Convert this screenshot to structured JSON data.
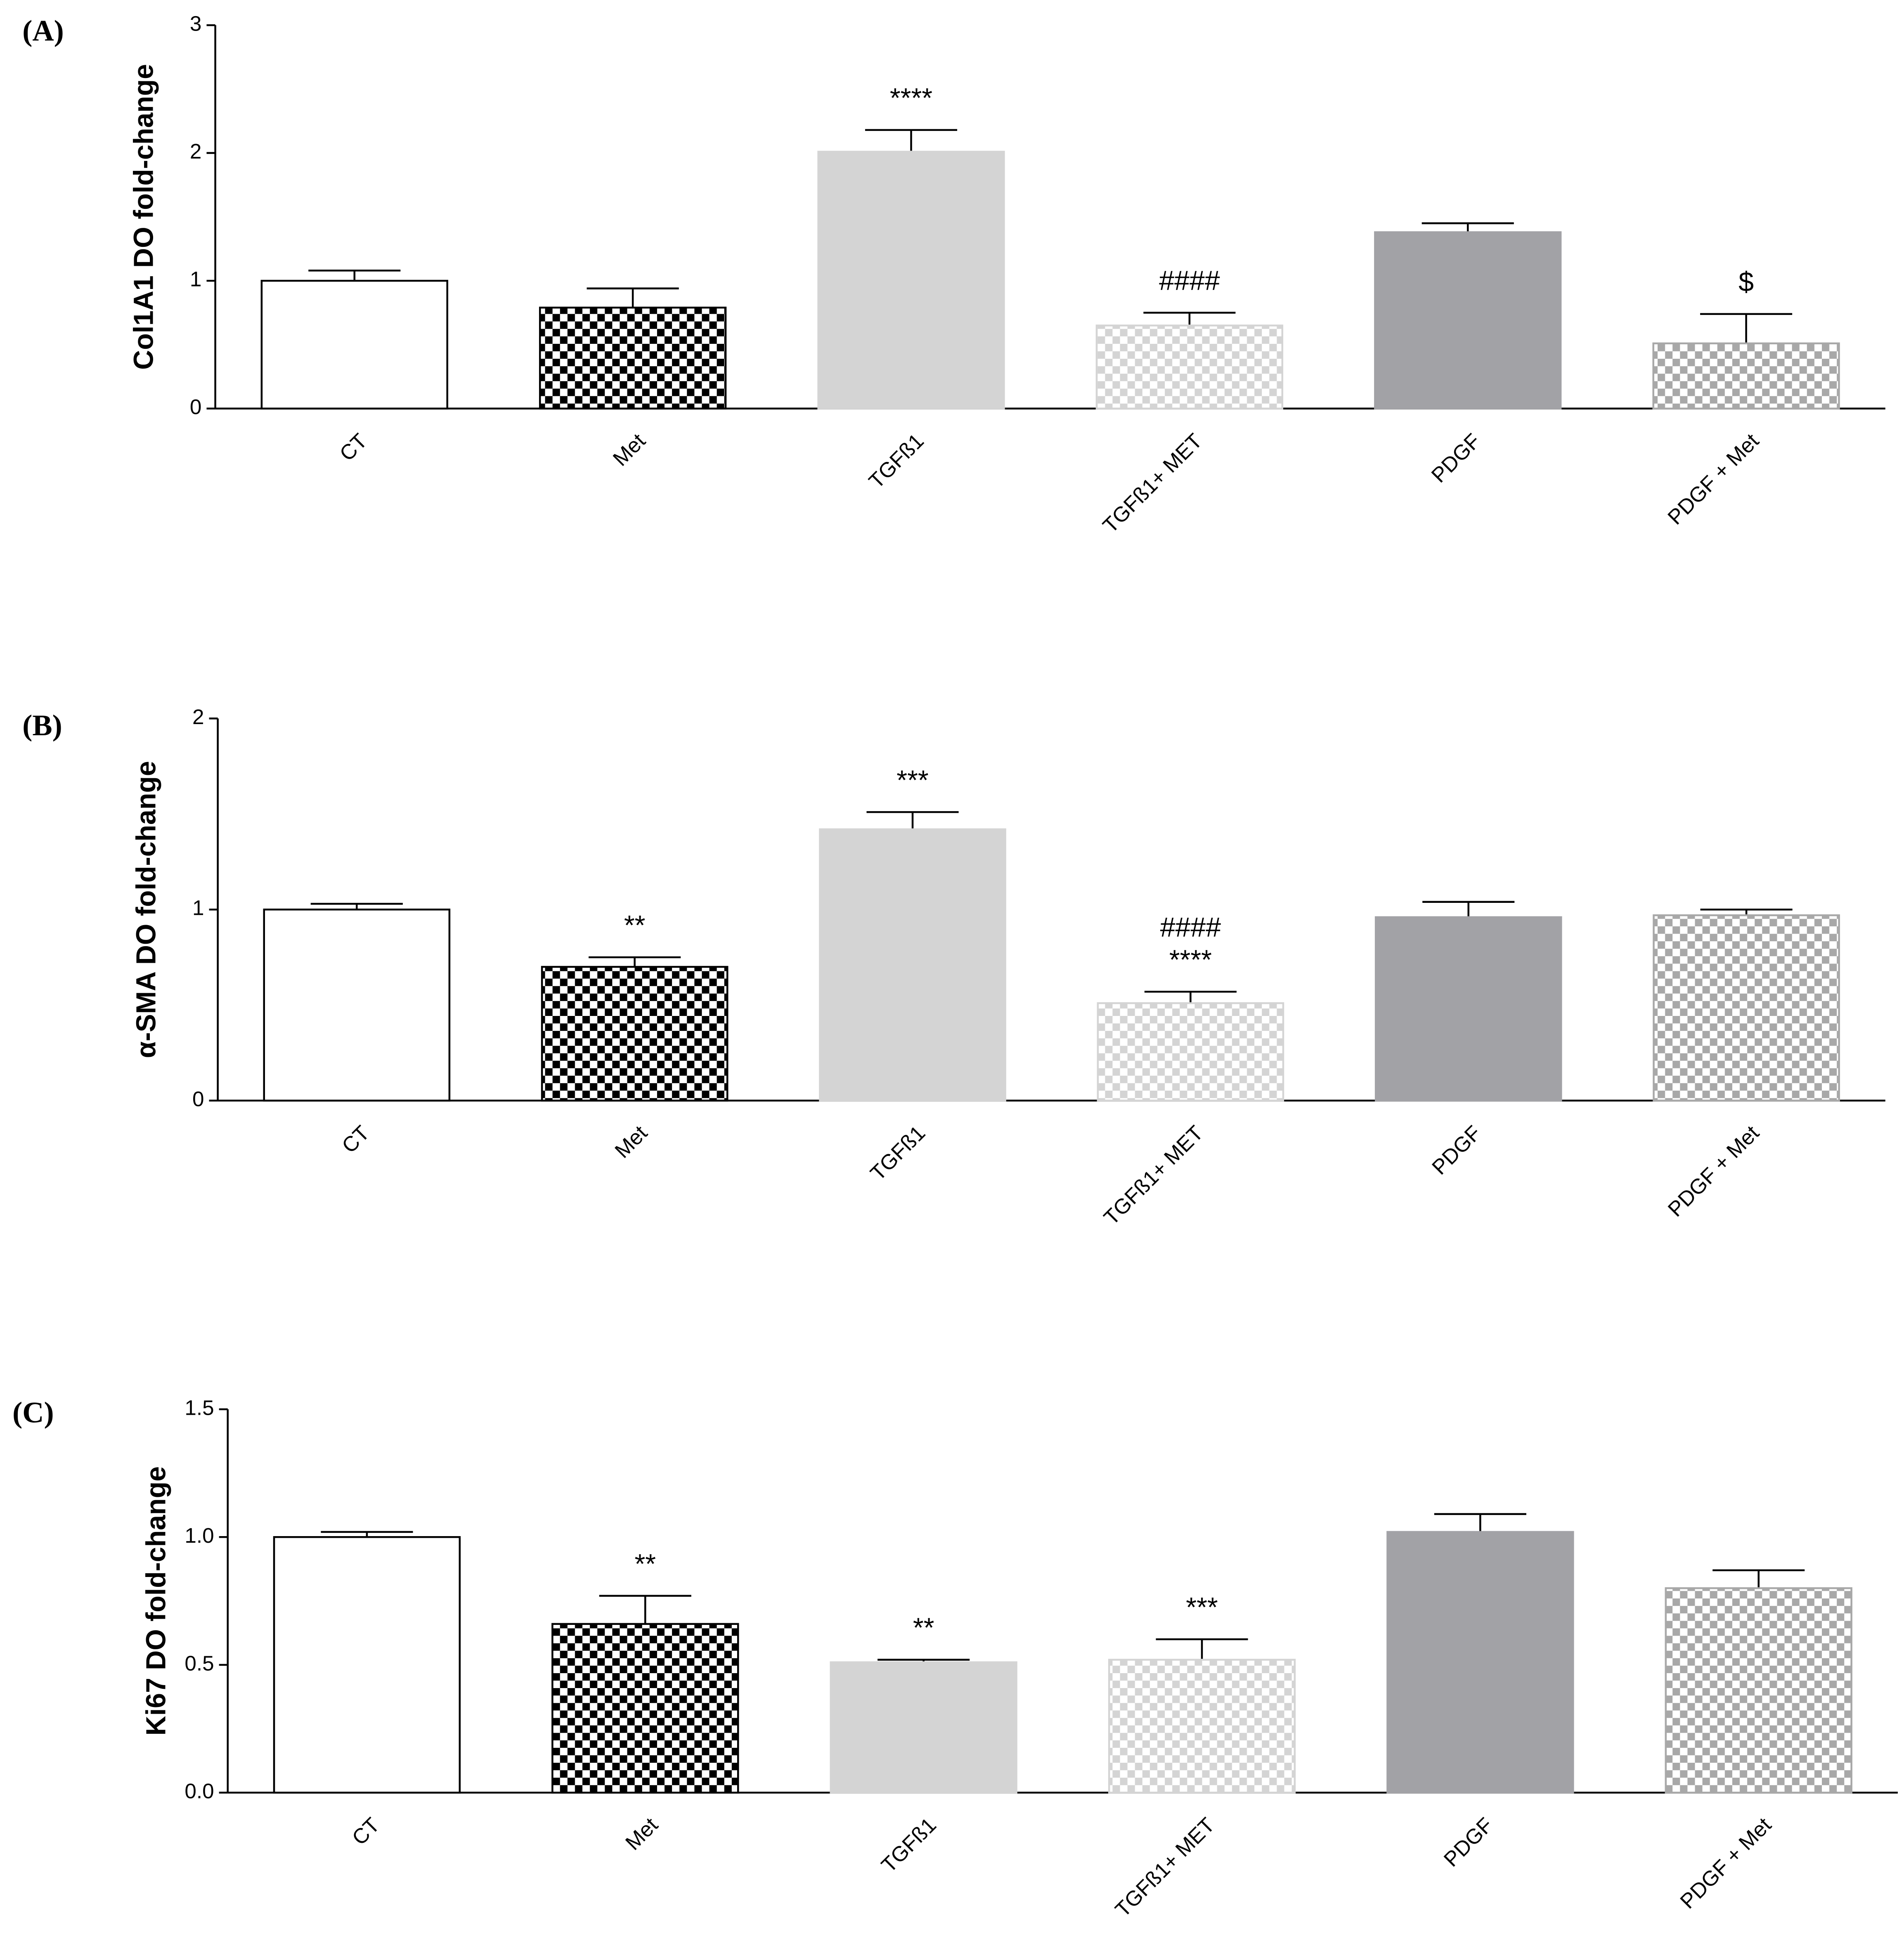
{
  "chart_data": [
    {
      "type": "bar",
      "panel": "(A)",
      "y_label": "Col1A1 DO fold-change",
      "categories": [
        "CT",
        "Met",
        "TGFß1",
        "TGFß1+ MET",
        "PDGF",
        "PDGF + Met"
      ],
      "values": [
        1.0,
        0.79,
        2.01,
        0.65,
        1.38,
        0.51
      ],
      "errors": [
        0.08,
        0.15,
        0.17,
        0.1,
        0.07,
        0.23
      ],
      "annotations": [
        [],
        [],
        [
          "****"
        ],
        [
          "####"
        ],
        [],
        [
          "$"
        ]
      ],
      "colors": [
        "#ffffff",
        "#000000",
        "#d4d4d4",
        "#d4d4d4",
        "#a2a2a6",
        "#a8a8a8"
      ],
      "patterns": [
        "solid",
        "checker",
        "solid",
        "checker",
        "solid",
        "checker"
      ],
      "ylim": [
        0,
        3
      ],
      "yticks": [
        0,
        1,
        2,
        3
      ]
    },
    {
      "type": "bar",
      "panel": "(B)",
      "y_label": "α-SMA DO fold-change",
      "categories": [
        "CT",
        "Met",
        "TGFß1",
        "TGFß1+ MET",
        "PDGF",
        "PDGF + Met"
      ],
      "values": [
        1.0,
        0.7,
        1.42,
        0.51,
        0.96,
        0.97
      ],
      "errors": [
        0.03,
        0.05,
        0.09,
        0.06,
        0.08,
        0.03
      ],
      "annotations": [
        [],
        [
          "**"
        ],
        [
          "***"
        ],
        [
          "####",
          "****"
        ],
        [],
        []
      ],
      "colors": [
        "#ffffff",
        "#000000",
        "#d4d4d4",
        "#d4d4d4",
        "#a2a2a6",
        "#a8a8a8"
      ],
      "patterns": [
        "solid",
        "checker",
        "solid",
        "checker",
        "solid",
        "checker"
      ],
      "ylim": [
        0,
        2
      ],
      "yticks": [
        0,
        1,
        2
      ]
    },
    {
      "type": "bar",
      "panel": "(C)",
      "y_label": "Ki67 DO fold-change",
      "categories": [
        "CT",
        "Met",
        "TGFß1",
        "TGFß1+ MET",
        "PDGF",
        "PDGF + Met"
      ],
      "values": [
        1.0,
        0.66,
        0.51,
        0.52,
        1.02,
        0.8
      ],
      "errors": [
        0.02,
        0.11,
        0.01,
        0.08,
        0.07,
        0.07
      ],
      "annotations": [
        [],
        [
          "**"
        ],
        [
          "**"
        ],
        [
          "***"
        ],
        [],
        []
      ],
      "colors": [
        "#ffffff",
        "#000000",
        "#d4d4d4",
        "#d4d4d4",
        "#a2a2a6",
        "#a8a8a8"
      ],
      "patterns": [
        "solid",
        "checker",
        "solid",
        "checker",
        "solid",
        "checker"
      ],
      "ylim": [
        0,
        1.5
      ],
      "yticks": [
        {
          "value": 0,
          "label": "0.0"
        },
        0.5,
        {
          "value": 1,
          "label": "1.0"
        },
        1.5
      ]
    }
  ]
}
